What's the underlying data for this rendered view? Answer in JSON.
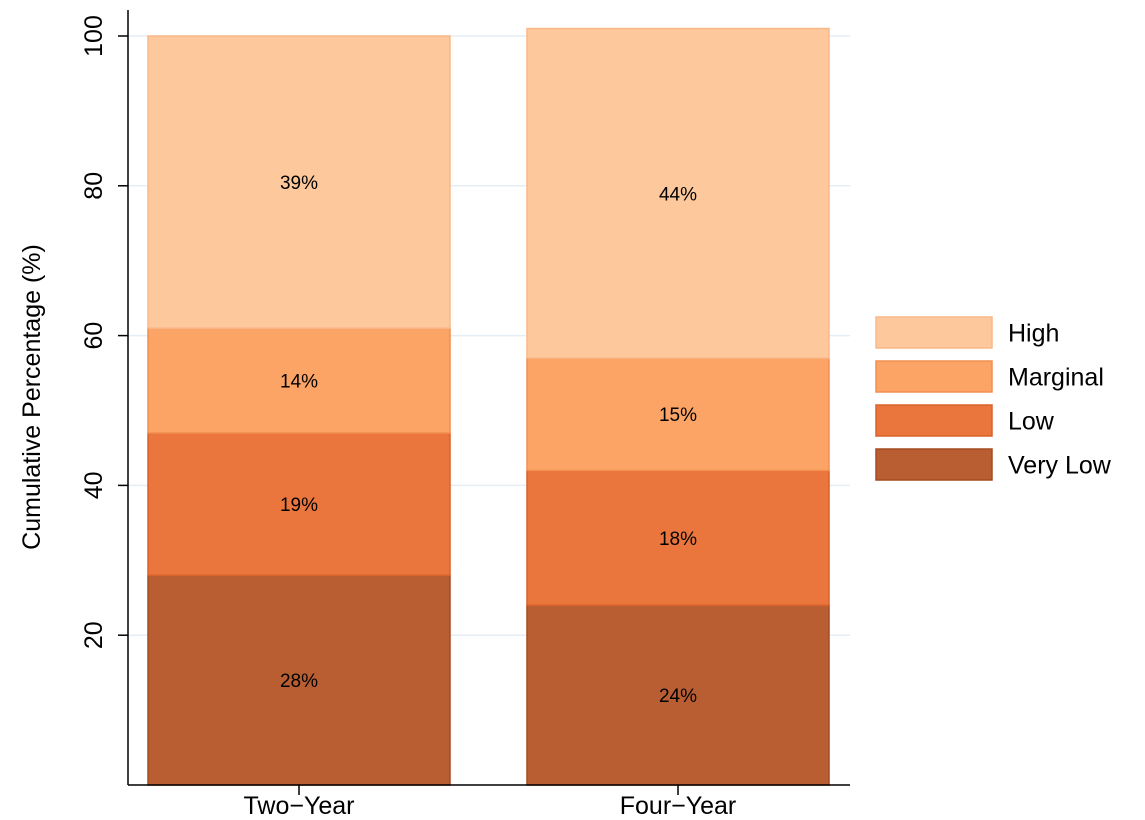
{
  "chart_data": {
    "type": "bar",
    "stacked": true,
    "title": "",
    "xlabel": "",
    "ylabel": "Cumulative Percentage (%)",
    "ylim": [
      0,
      100
    ],
    "yticks": [
      20,
      40,
      60,
      80,
      100
    ],
    "categories": [
      "Two−Year",
      "Four−Year"
    ],
    "series": [
      {
        "name": "Very Low",
        "values": [
          28,
          24
        ],
        "labels": [
          "28%",
          "24%"
        ],
        "color": "#b95e33",
        "stroke": "#a54a22"
      },
      {
        "name": "Low",
        "values": [
          19,
          18
        ],
        "labels": [
          "19%",
          "18%"
        ],
        "color": "#ea763e",
        "stroke": "#d8622a"
      },
      {
        "name": "Marginal",
        "values": [
          14,
          15
        ],
        "labels": [
          "14%",
          "15%"
        ],
        "color": "#fba465",
        "stroke": "#f29050"
      },
      {
        "name": "High",
        "values": [
          39,
          44
        ],
        "labels": [
          "39%",
          "44%"
        ],
        "color": "#fdc89c",
        "stroke": "#f9b989"
      }
    ],
    "legend": {
      "position": "right",
      "order": [
        "High",
        "Marginal",
        "Low",
        "Very Low"
      ]
    },
    "grid": true,
    "grid_color": "#e6eef3"
  }
}
